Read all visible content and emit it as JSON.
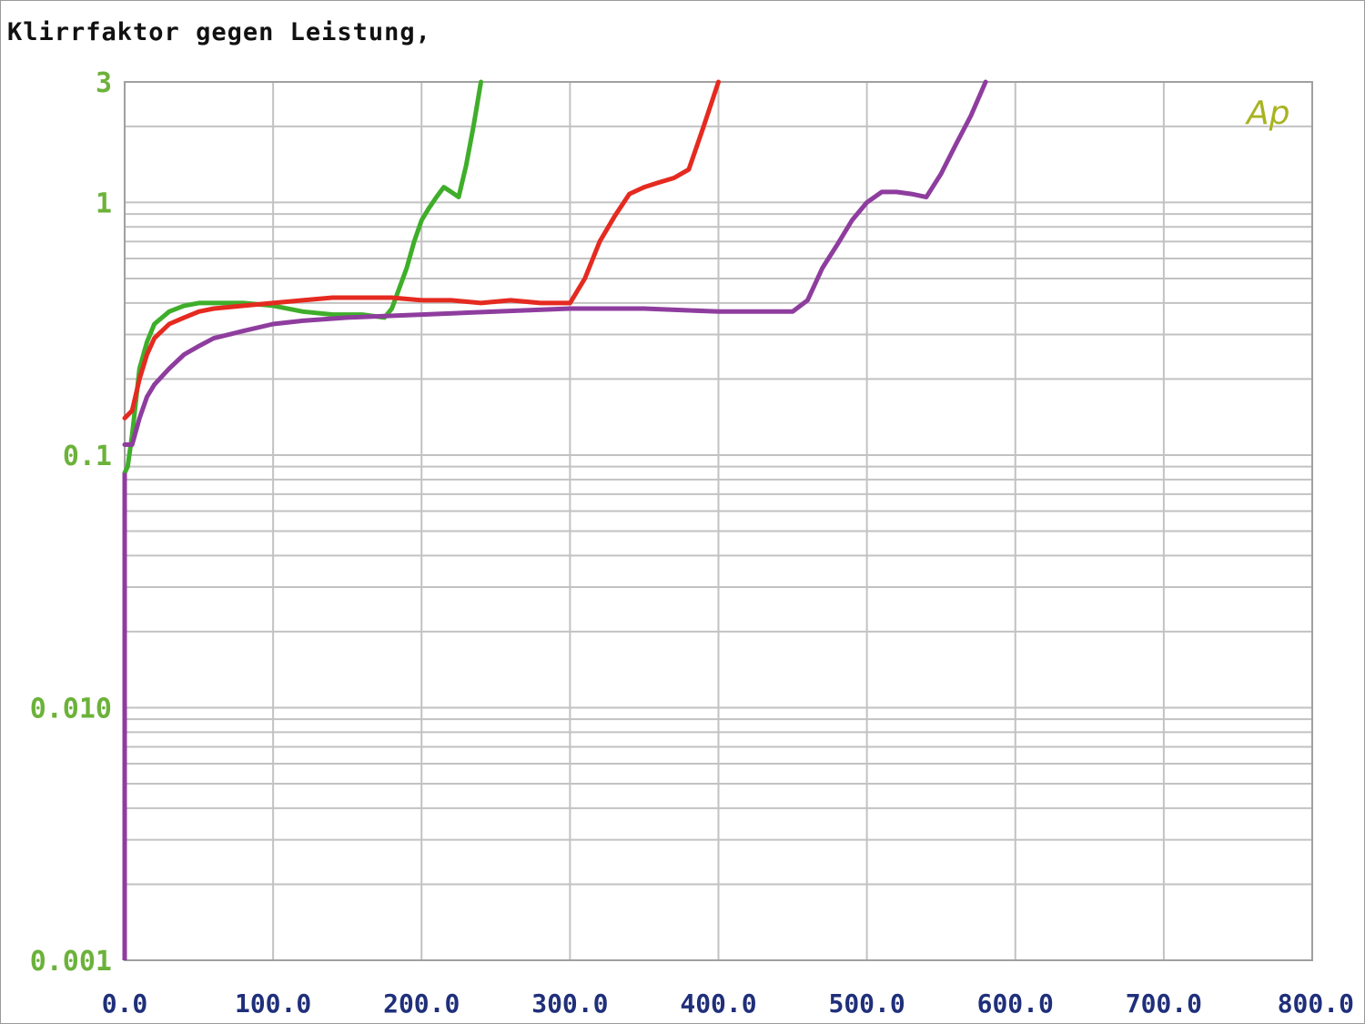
{
  "chart_data": {
    "type": "line",
    "title": "Klirrfaktor gegen Leistung,",
    "xlabel": "",
    "ylabel": "",
    "xlim": [
      0,
      800
    ],
    "ylim": [
      0.001,
      3
    ],
    "yscale": "log",
    "grid": true,
    "x_ticks": [
      "0.0",
      "100.0",
      "200.0",
      "300.0",
      "400.0",
      "500.0",
      "600.0",
      "700.0",
      "800.0"
    ],
    "y_ticks": [
      {
        "value": 3,
        "label": "3"
      },
      {
        "value": 1,
        "label": "1"
      },
      {
        "value": 0.1,
        "label": "0.1"
      },
      {
        "value": 0.01,
        "label": "0.010"
      },
      {
        "value": 0.001,
        "label": "0.001"
      }
    ],
    "logo": "Ap",
    "colors": {
      "grid": "#c2c2c2",
      "axis": "#a0a0a0",
      "ytick": "#6cb23a",
      "xtick": "#1f2f7a",
      "logo": "#a8b320"
    },
    "series": [
      {
        "color": "#3fae2a",
        "x": [
          0,
          2,
          5,
          10,
          15,
          20,
          30,
          40,
          50,
          60,
          80,
          100,
          120,
          140,
          160,
          175,
          180,
          190,
          195,
          200,
          205,
          210,
          215,
          220,
          225,
          230,
          235,
          240
        ],
        "y": [
          0.085,
          0.09,
          0.12,
          0.22,
          0.28,
          0.33,
          0.37,
          0.39,
          0.4,
          0.4,
          0.4,
          0.39,
          0.37,
          0.36,
          0.36,
          0.35,
          0.38,
          0.55,
          0.7,
          0.85,
          0.95,
          1.05,
          1.15,
          1.1,
          1.05,
          1.4,
          2.0,
          3.0
        ]
      },
      {
        "color": "#e52a20",
        "x": [
          0,
          5,
          10,
          15,
          20,
          30,
          40,
          50,
          60,
          80,
          100,
          120,
          140,
          160,
          180,
          200,
          220,
          240,
          260,
          280,
          300,
          310,
          320,
          330,
          340,
          350,
          360,
          370,
          380,
          390,
          400
        ],
        "y": [
          0.14,
          0.15,
          0.2,
          0.25,
          0.29,
          0.33,
          0.35,
          0.37,
          0.38,
          0.39,
          0.4,
          0.41,
          0.42,
          0.42,
          0.42,
          0.41,
          0.41,
          0.4,
          0.41,
          0.4,
          0.4,
          0.5,
          0.7,
          0.88,
          1.08,
          1.15,
          1.2,
          1.25,
          1.35,
          2.0,
          3.0
        ]
      },
      {
        "color": "#8e3d9e",
        "x": [
          0,
          5,
          10,
          15,
          20,
          30,
          40,
          50,
          60,
          80,
          100,
          120,
          150,
          200,
          250,
          300,
          350,
          400,
          450,
          460,
          470,
          480,
          490,
          500,
          510,
          520,
          530,
          540,
          550,
          560,
          570,
          580
        ],
        "y": [
          0.11,
          0.11,
          0.14,
          0.17,
          0.19,
          0.22,
          0.25,
          0.27,
          0.29,
          0.31,
          0.33,
          0.34,
          0.35,
          0.36,
          0.37,
          0.38,
          0.38,
          0.37,
          0.37,
          0.41,
          0.55,
          0.68,
          0.85,
          1.0,
          1.1,
          1.1,
          1.08,
          1.05,
          1.3,
          1.7,
          2.2,
          3.0
        ]
      }
    ]
  }
}
